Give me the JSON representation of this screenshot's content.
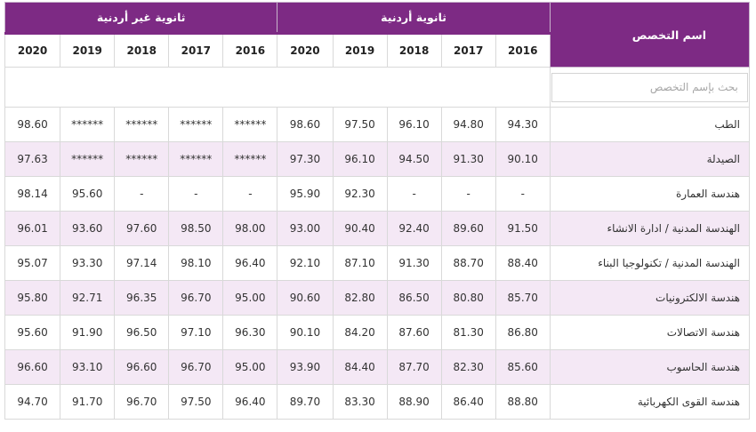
{
  "header": {
    "specialization_label": "اسم التخصص",
    "group_jordanian": "ثانوية أردنية",
    "group_non_jordanian": "ثانوية غير أردنية",
    "years": [
      "2016",
      "2017",
      "2018",
      "2019",
      "2020"
    ]
  },
  "search": {
    "placeholder": "بحث بإسم التخصص"
  },
  "rows": [
    {
      "name": "الطب",
      "jo": [
        "94.30",
        "94.80",
        "96.10",
        "97.50",
        "98.60"
      ],
      "nonjo": [
        "******",
        "******",
        "******",
        "******",
        "98.60"
      ]
    },
    {
      "name": "الصيدلة",
      "jo": [
        "90.10",
        "91.30",
        "94.50",
        "96.10",
        "97.30"
      ],
      "nonjo": [
        "******",
        "******",
        "******",
        "******",
        "97.63"
      ]
    },
    {
      "name": "هندسة العمارة",
      "jo": [
        "-",
        "-",
        "-",
        "92.30",
        "95.90"
      ],
      "nonjo": [
        "-",
        "-",
        "-",
        "95.60",
        "98.14"
      ]
    },
    {
      "name": "الهندسة المدنية / ادارة الانشاء",
      "jo": [
        "91.50",
        "89.60",
        "92.40",
        "90.40",
        "93.00"
      ],
      "nonjo": [
        "98.00",
        "98.50",
        "97.60",
        "93.60",
        "96.01"
      ]
    },
    {
      "name": "الهندسة المدنية / تكنولوجيا البناء",
      "jo": [
        "88.40",
        "88.70",
        "91.30",
        "87.10",
        "92.10"
      ],
      "nonjo": [
        "96.40",
        "98.10",
        "97.14",
        "93.30",
        "95.07"
      ]
    },
    {
      "name": "هندسة الالكترونيات",
      "jo": [
        "85.70",
        "80.80",
        "86.50",
        "82.80",
        "90.60"
      ],
      "nonjo": [
        "95.00",
        "96.70",
        "96.35",
        "92.71",
        "95.80"
      ]
    },
    {
      "name": "هندسة الاتصالات",
      "jo": [
        "86.80",
        "81.30",
        "87.60",
        "84.20",
        "90.10"
      ],
      "nonjo": [
        "96.30",
        "97.10",
        "96.50",
        "91.90",
        "95.60"
      ]
    },
    {
      "name": "هندسة الحاسوب",
      "jo": [
        "85.60",
        "82.30",
        "87.70",
        "84.40",
        "93.90"
      ],
      "nonjo": [
        "95.00",
        "96.70",
        "96.60",
        "93.10",
        "96.60"
      ]
    },
    {
      "name": "هندسة القوى الكهربائية",
      "jo": [
        "88.80",
        "86.40",
        "88.90",
        "83.30",
        "89.70"
      ],
      "nonjo": [
        "96.40",
        "97.50",
        "96.70",
        "91.70",
        "94.70"
      ]
    }
  ]
}
